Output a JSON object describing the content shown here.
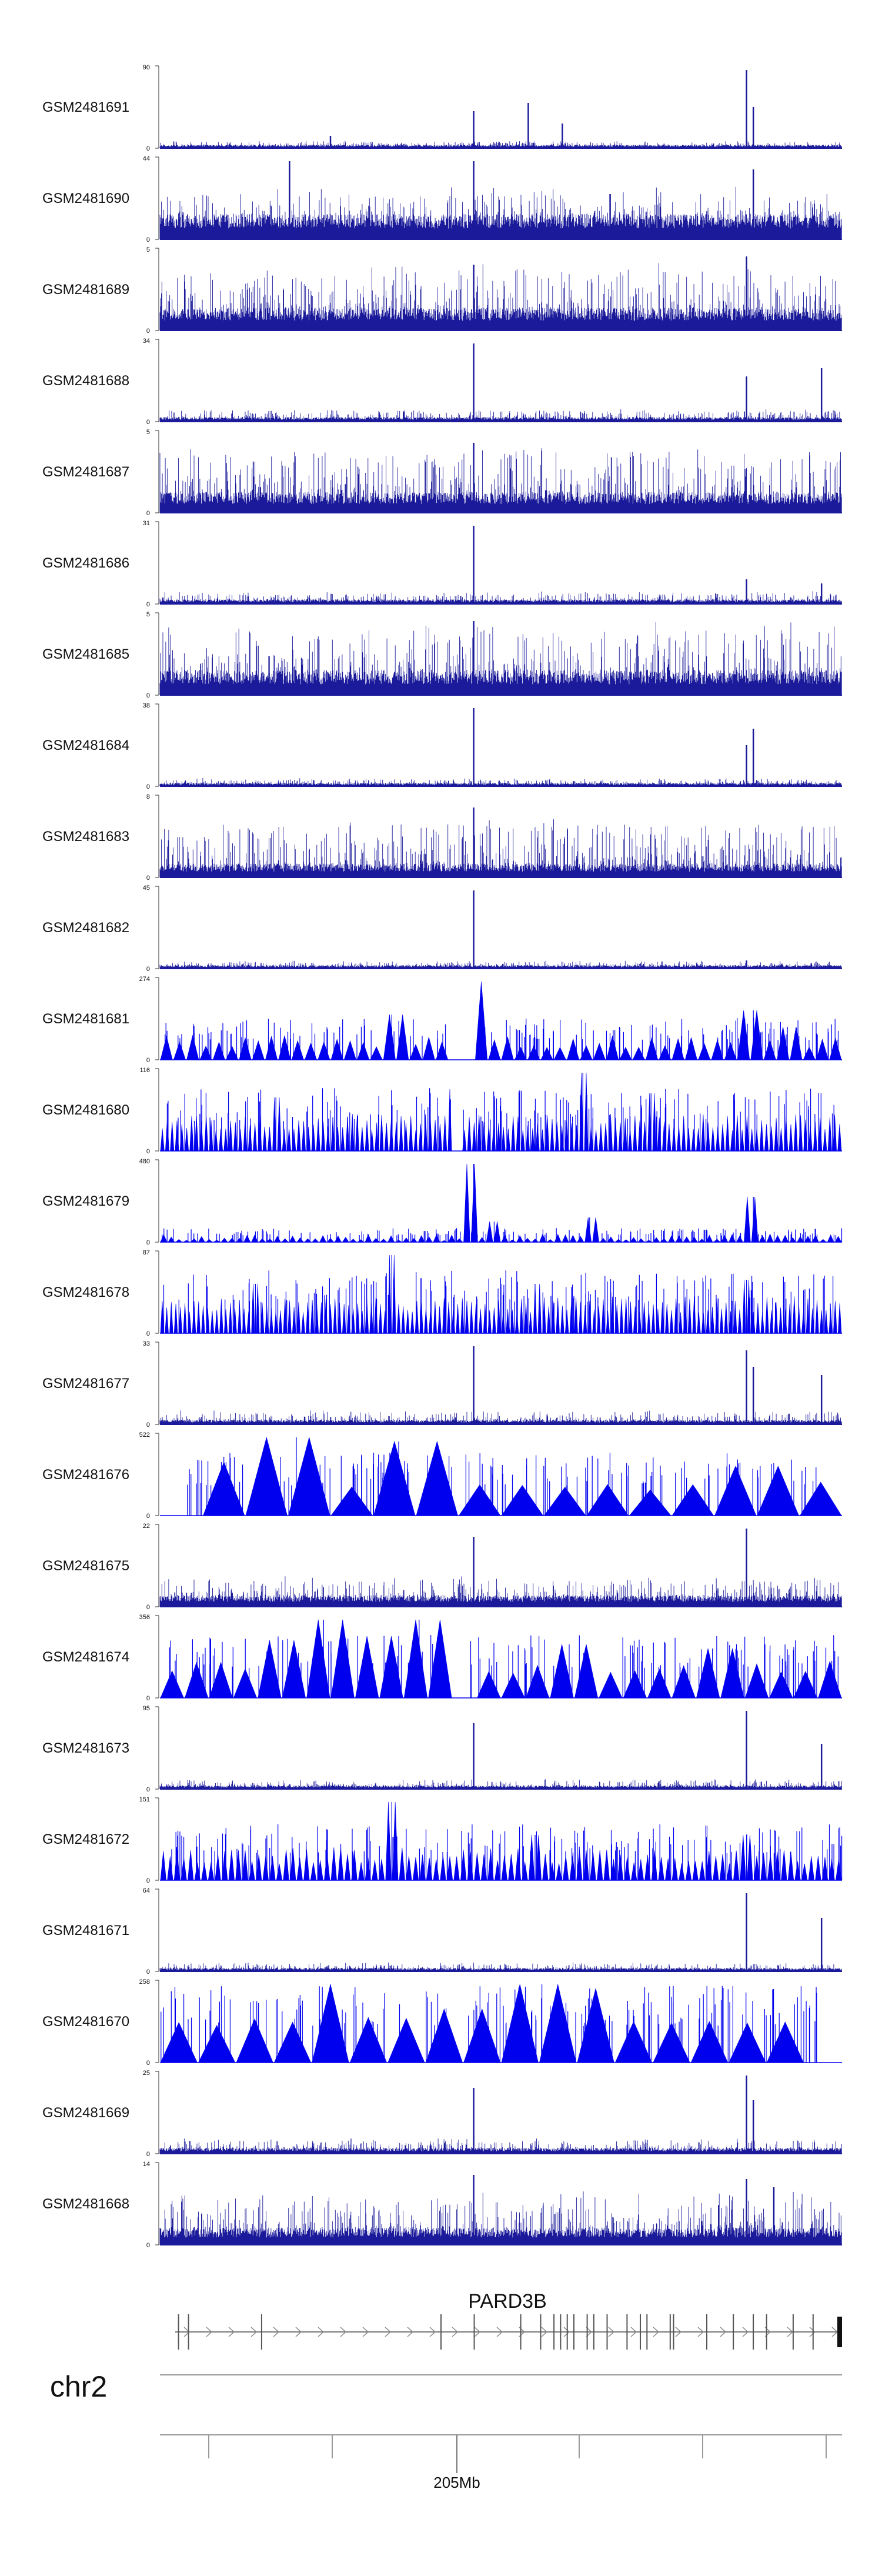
{
  "chart_data": {
    "type": "area",
    "chromosome": "chr2",
    "gene": {
      "name": "PARD3B",
      "strand": "+"
    },
    "genome_axis": {
      "tick_label": "205Mb"
    },
    "colors": {
      "line_signal": "#1a1a9a",
      "peak_signal": "#0000ee",
      "axis": "#333333"
    },
    "tracks": [
      {
        "name": "GSM2481691",
        "ymax": "90",
        "ymin": "0",
        "style": "line",
        "baseline": 0.03,
        "noise": 0.05,
        "peaks": [
          [
            0.25,
            0.15
          ],
          [
            0.46,
            0.45
          ],
          [
            0.54,
            0.55
          ],
          [
            0.59,
            0.3
          ],
          [
            0.86,
            0.95
          ],
          [
            0.87,
            0.5
          ]
        ]
      },
      {
        "name": "GSM2481690",
        "ymax": "44",
        "ymin": "0",
        "style": "line",
        "baseline": 0.22,
        "noise": 0.35,
        "peaks": [
          [
            0.19,
            0.95
          ],
          [
            0.46,
            0.95
          ],
          [
            0.87,
            0.85
          ],
          [
            0.66,
            0.55
          ]
        ]
      },
      {
        "name": "GSM2481689",
        "ymax": "5",
        "ymin": "0",
        "style": "line",
        "baseline": 0.2,
        "noise": 0.55,
        "peaks": [
          [
            0.86,
            0.9
          ],
          [
            0.46,
            0.8
          ]
        ]
      },
      {
        "name": "GSM2481688",
        "ymax": "34",
        "ymin": "0",
        "style": "line",
        "baseline": 0.04,
        "noise": 0.1,
        "peaks": [
          [
            0.46,
            0.95
          ],
          [
            0.86,
            0.55
          ],
          [
            0.97,
            0.65
          ]
        ]
      },
      {
        "name": "GSM2481687",
        "ymax": "5",
        "ymin": "0",
        "style": "line",
        "baseline": 0.18,
        "noise": 0.6,
        "peaks": [
          [
            0.46,
            0.85
          ]
        ]
      },
      {
        "name": "GSM2481686",
        "ymax": "31",
        "ymin": "0",
        "style": "line",
        "baseline": 0.04,
        "noise": 0.1,
        "peaks": [
          [
            0.46,
            0.95
          ],
          [
            0.86,
            0.3
          ],
          [
            0.97,
            0.25
          ]
        ]
      },
      {
        "name": "GSM2481685",
        "ymax": "5",
        "ymin": "0",
        "style": "line",
        "baseline": 0.22,
        "noise": 0.6,
        "peaks": [
          [
            0.46,
            0.9
          ]
        ]
      },
      {
        "name": "GSM2481684",
        "ymax": "38",
        "ymin": "0",
        "style": "line",
        "baseline": 0.03,
        "noise": 0.06,
        "peaks": [
          [
            0.46,
            0.95
          ],
          [
            0.86,
            0.5
          ],
          [
            0.87,
            0.7
          ]
        ]
      },
      {
        "name": "GSM2481683",
        "ymax": "8",
        "ymin": "0",
        "style": "line",
        "baseline": 0.12,
        "noise": 0.55,
        "peaks": [
          [
            0.46,
            0.85
          ]
        ]
      },
      {
        "name": "GSM2481682",
        "ymax": "45",
        "ymin": "0",
        "style": "line",
        "baseline": 0.03,
        "noise": 0.06,
        "peaks": [
          [
            0.46,
            0.95
          ],
          [
            0.86,
            0.1
          ]
        ]
      },
      {
        "name": "GSM2481681",
        "ymax": "274",
        "ymin": "0",
        "style": "triangles",
        "gaps": [
          [
            0.42,
            0.46
          ]
        ],
        "tri_min": 0.15,
        "tri_max": 0.3,
        "tri_count": 52,
        "peaks": [
          [
            0.34,
            0.55
          ],
          [
            0.46,
            0.95
          ],
          [
            0.87,
            0.6
          ],
          [
            0.92,
            0.4
          ]
        ]
      },
      {
        "name": "GSM2481680",
        "ymax": "116",
        "ymin": "0",
        "style": "triangles",
        "gaps": [
          [
            0.43,
            0.44
          ]
        ],
        "tri_min": 0.25,
        "tri_max": 0.45,
        "tri_count": 140,
        "peaks": [
          [
            0.17,
            0.65
          ],
          [
            0.43,
            0.75
          ],
          [
            0.62,
            0.95
          ],
          [
            0.72,
            0.7
          ]
        ]
      },
      {
        "name": "GSM2481679",
        "ymax": "480",
        "ymin": "0",
        "style": "triangles",
        "gaps": [],
        "tri_min": 0.02,
        "tri_max": 0.1,
        "tri_count": 90,
        "peaks": [
          [
            0.46,
            0.95
          ],
          [
            0.87,
            0.55
          ],
          [
            0.63,
            0.3
          ],
          [
            0.49,
            0.25
          ]
        ]
      },
      {
        "name": "GSM2481678",
        "ymax": "87",
        "ymin": "0",
        "style": "triangles",
        "gaps": [],
        "tri_min": 0.25,
        "tri_max": 0.45,
        "tri_count": 150,
        "peaks": [
          [
            0.34,
            0.95
          ],
          [
            0.86,
            0.65
          ],
          [
            0.14,
            0.6
          ],
          [
            0.55,
            0.6
          ]
        ]
      },
      {
        "name": "GSM2481677",
        "ymax": "33",
        "ymin": "0",
        "style": "line",
        "baseline": 0.04,
        "noise": 0.12,
        "peaks": [
          [
            0.46,
            0.95
          ],
          [
            0.86,
            0.9
          ],
          [
            0.87,
            0.7
          ],
          [
            0.97,
            0.6
          ]
        ]
      },
      {
        "name": "GSM2481676",
        "ymax": "522",
        "ymin": "0",
        "style": "triangles",
        "gaps": [
          [
            0.0,
            0.04
          ],
          [
            0.97,
            1.0
          ]
        ],
        "tri_min": 0.3,
        "tri_max": 0.45,
        "tri_count": 16,
        "peaks": [
          [
            0.09,
            0.65
          ],
          [
            0.15,
            0.65
          ],
          [
            0.2,
            0.95
          ],
          [
            0.35,
            0.9
          ],
          [
            0.88,
            0.6
          ]
        ]
      },
      {
        "name": "GSM2481675",
        "ymax": "22",
        "ymin": "0",
        "style": "line",
        "baseline": 0.1,
        "noise": 0.25,
        "peaks": [
          [
            0.46,
            0.85
          ],
          [
            0.86,
            0.95
          ]
        ]
      },
      {
        "name": "GSM2481674",
        "ymax": "356",
        "ymin": "0",
        "style": "triangles",
        "gaps": [
          [
            0.42,
            0.45
          ]
        ],
        "tri_min": 0.3,
        "tri_max": 0.45,
        "tri_count": 28,
        "peaks": [
          [
            0.18,
            0.7
          ],
          [
            0.24,
            0.95
          ],
          [
            0.29,
            0.75
          ],
          [
            0.35,
            0.75
          ],
          [
            0.38,
            0.95
          ],
          [
            0.6,
            0.65
          ],
          [
            0.81,
            0.6
          ]
        ]
      },
      {
        "name": "GSM2481673",
        "ymax": "95",
        "ymin": "0",
        "style": "line",
        "baseline": 0.03,
        "noise": 0.08,
        "peaks": [
          [
            0.46,
            0.8
          ],
          [
            0.86,
            0.95
          ],
          [
            0.97,
            0.55
          ]
        ]
      },
      {
        "name": "GSM2481672",
        "ymax": "151",
        "ymin": "0",
        "style": "triangles",
        "gaps": [],
        "tri_min": 0.2,
        "tri_max": 0.4,
        "tri_count": 100,
        "peaks": [
          [
            0.34,
            0.95
          ],
          [
            0.55,
            0.55
          ],
          [
            0.86,
            0.55
          ]
        ]
      },
      {
        "name": "GSM2481671",
        "ymax": "64",
        "ymin": "0",
        "style": "line",
        "baseline": 0.03,
        "noise": 0.07,
        "peaks": [
          [
            0.86,
            0.95
          ],
          [
            0.97,
            0.65
          ]
        ]
      },
      {
        "name": "GSM2481670",
        "ymax": "258",
        "ymin": "0",
        "style": "triangles",
        "gaps": [
          [
            0.42,
            0.45
          ],
          [
            0.97,
            1.0
          ]
        ],
        "tri_min": 0.45,
        "tri_max": 0.55,
        "tri_count": 18,
        "peaks": [
          [
            0.25,
            0.95
          ],
          [
            0.42,
            0.65
          ],
          [
            0.56,
            0.95
          ],
          [
            0.63,
            0.9
          ]
        ]
      },
      {
        "name": "GSM2481669",
        "ymax": "25",
        "ymin": "0",
        "style": "line",
        "baseline": 0.05,
        "noise": 0.12,
        "peaks": [
          [
            0.46,
            0.8
          ],
          [
            0.86,
            0.95
          ],
          [
            0.87,
            0.65
          ]
        ]
      },
      {
        "name": "GSM2481668",
        "ymax": "14",
        "ymin": "0",
        "style": "line",
        "baseline": 0.15,
        "noise": 0.45,
        "peaks": [
          [
            0.46,
            0.85
          ],
          [
            0.86,
            0.8
          ],
          [
            0.9,
            0.7
          ]
        ]
      }
    ]
  }
}
